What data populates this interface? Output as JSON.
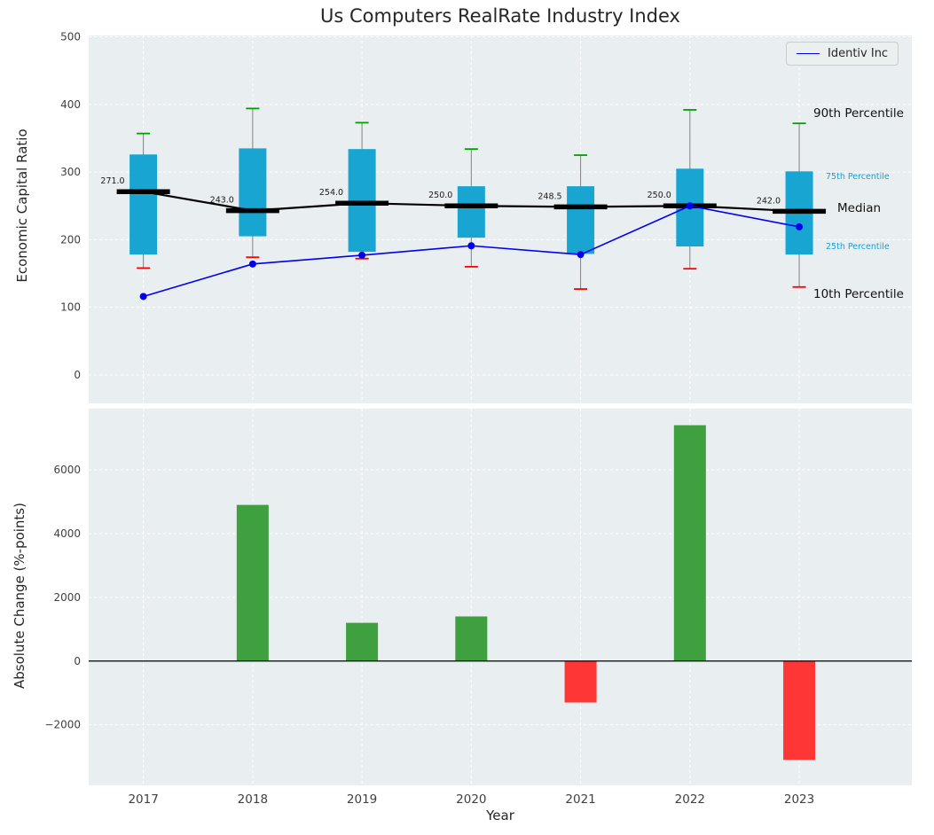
{
  "title": "Us Computers RealRate Industry Index",
  "legend": {
    "label": "Identiv Inc"
  },
  "axes": {
    "top": {
      "ylabel": "Economic Capital Ratio"
    },
    "bottom": {
      "ylabel": "Absolute Change (%-points)",
      "xlabel": "Year"
    }
  },
  "annotations": {
    "p90": "90th Percentile",
    "p75": "75th Percentile",
    "median": "Median",
    "p25": "25th Percentile",
    "p10": "10th Percentile"
  },
  "colors": {
    "axes_bg": "#e9eef0",
    "grid_line": "#ffffff",
    "box_fill": "#18a5d2",
    "median_line": "#000000",
    "series_line": "#0000ee",
    "whisker": "#808080",
    "cap_top": "#00a000",
    "cap_bottom": "#ff0000",
    "bar_positive": "#3fa03f",
    "bar_negative": "#ff3636",
    "tick_label": "#404040",
    "percentile_text": "#1b9fd2",
    "median_value_text": "#1a1a1a"
  },
  "chart_data": [
    {
      "type": "boxplot",
      "title": "Us Computers RealRate Industry Index",
      "ylabel": "Economic Capital Ratio",
      "ylim": [
        -42,
        502
      ],
      "yticks": [
        0,
        100,
        200,
        300,
        400,
        500
      ],
      "grid": true,
      "legend_position": "upper right",
      "categories": [
        2017,
        2018,
        2019,
        2020,
        2021,
        2022,
        2023
      ],
      "boxes": [
        {
          "p10": 158,
          "q25": 178,
          "median": 271,
          "q75": 326,
          "p90": 357
        },
        {
          "p10": 174,
          "q25": 205,
          "median": 243,
          "q75": 335,
          "p90": 394
        },
        {
          "p10": 172,
          "q25": 182,
          "median": 254,
          "q75": 334,
          "p90": 373
        },
        {
          "p10": 160,
          "q25": 203,
          "median": 250,
          "q75": 279,
          "p90": 334
        },
        {
          "p10": 127,
          "q25": 179,
          "median": 248.5,
          "q75": 279,
          "p90": 325
        },
        {
          "p10": 157,
          "q25": 190,
          "median": 250,
          "q75": 305,
          "p90": 392
        },
        {
          "p10": 130,
          "q25": 178,
          "median": 242,
          "q75": 301,
          "p90": 372
        }
      ],
      "median_labels": [
        "271.0",
        "243.0",
        "254.0",
        "250.0",
        "248.5",
        "250.0",
        "242.0"
      ],
      "series": [
        {
          "name": "Identiv Inc",
          "values": [
            116,
            164,
            177,
            191,
            178,
            250,
            219
          ]
        }
      ]
    },
    {
      "type": "bar",
      "ylabel": "Absolute Change (%-points)",
      "xlabel": "Year",
      "ylim": [
        -3900,
        7920
      ],
      "yticks": [
        -2000,
        0,
        2000,
        4000,
        6000
      ],
      "grid": true,
      "categories": [
        2017,
        2018,
        2019,
        2020,
        2021,
        2022,
        2023
      ],
      "values": [
        0,
        4900,
        1200,
        1400,
        -1300,
        7400,
        -3100
      ]
    }
  ]
}
